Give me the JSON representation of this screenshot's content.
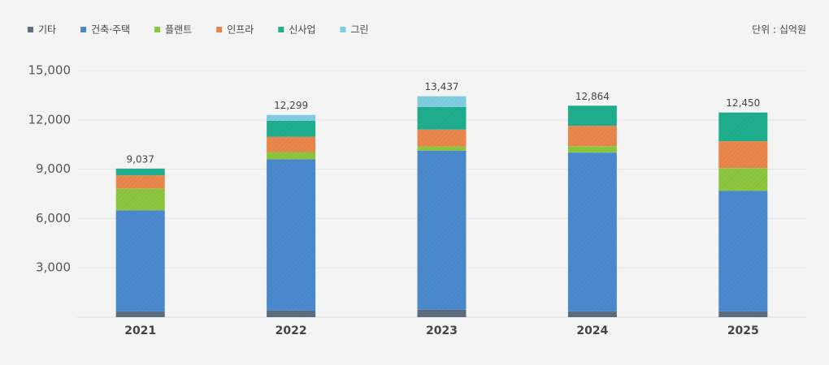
{
  "chart_data": {
    "type": "stacked-bar",
    "unit_label": "단위 : 십억원",
    "categories": [
      "2021",
      "2022",
      "2023",
      "2024",
      "2025"
    ],
    "series": [
      {
        "name": "기타",
        "color": "#5b6d7e",
        "values": [
          350,
          400,
          450,
          350,
          350
        ]
      },
      {
        "name": "건축·주택",
        "color": "#4a89cd",
        "values": [
          6150,
          9200,
          9680,
          9660,
          7340
        ]
      },
      {
        "name": "플랜트",
        "color": "#8cc63f",
        "values": [
          1330,
          440,
          250,
          390,
          1380
        ]
      },
      {
        "name": "인프라",
        "color": "#e8864b",
        "values": [
          800,
          930,
          1030,
          1240,
          1630
        ]
      },
      {
        "name": "신사업",
        "color": "#1fae8d",
        "values": [
          407,
          980,
          1380,
          1224,
          1750
        ]
      },
      {
        "name": "그린",
        "color": "#7fcde1",
        "values": [
          0,
          349,
          647,
          0,
          0
        ]
      }
    ],
    "totals": [
      9037,
      12299,
      13437,
      12864,
      12450
    ],
    "total_labels": [
      "9,037",
      "12,299",
      "13,437",
      "12,864",
      "12,450"
    ],
    "ylim": [
      0,
      15000
    ],
    "yticks": [
      {
        "value": 3000,
        "label": "3,000"
      },
      {
        "value": 6000,
        "label": "6,000"
      },
      {
        "value": 9000,
        "label": "9,000"
      },
      {
        "value": 12000,
        "label": "12,000"
      },
      {
        "value": 15000,
        "label": "15,000"
      }
    ],
    "grid": true
  }
}
